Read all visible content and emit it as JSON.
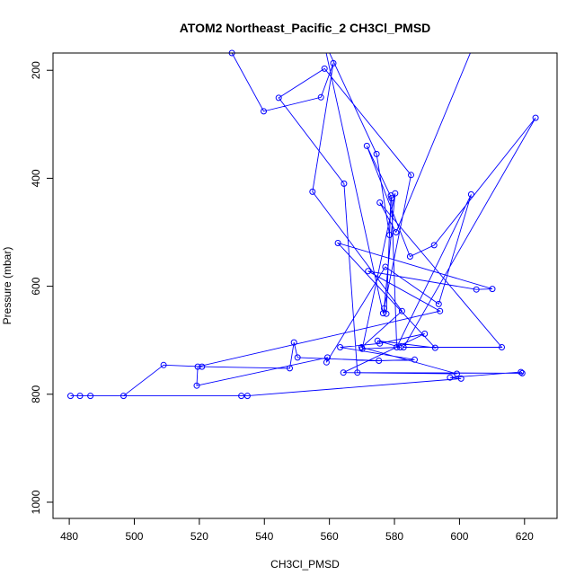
{
  "chart_data": {
    "type": "line",
    "title": "ATOM2 Northeast_Pacific_2 CH3Cl_PMSD",
    "xlabel": "CH3Cl_PMSD",
    "ylabel": "Pressure (mbar)",
    "xlim": [
      475,
      630
    ],
    "ylim": [
      1030,
      168
    ],
    "y_reversed": true,
    "x_ticks": [
      480,
      500,
      520,
      540,
      560,
      580,
      600,
      620
    ],
    "y_ticks": [
      200,
      400,
      600,
      800,
      1000
    ],
    "grid": false,
    "legend": "none",
    "series_color": "#0000ff",
    "series": [
      {
        "x": [
          530,
          539.8,
          557.4,
          561.2,
          554.8,
          582.3,
          569.9,
          599.2,
          564.3,
          589.3,
          575.5,
          563.3,
          586.2,
          575.2,
          550.2,
          549.1,
          547.8,
          520.8,
          509,
          496.7,
          486.5,
          483.3,
          480.4,
          532.9,
          534.8,
          600.5,
          597.1,
          618.9,
          619.3,
          568.6,
          564.5,
          544.4,
          558.5,
          585.1,
          576.5,
          558.1,
          574.5,
          578.5,
          578.9,
          577.5,
          576.8,
          580.2,
          570.1,
          581.8,
          574.8,
          592.5,
          562.6,
          610.1,
          605.2,
          571.9,
          594,
          519.5,
          519.2,
          559.4,
          559.1,
          577.2,
          593.6,
          603.6,
          580.7,
          579.1,
          571.5,
          584.8,
          592.2,
          623.4,
          582.8,
          613,
          575.5,
          580.5,
          608
        ],
        "y": [
          168,
          276,
          250,
          187,
          425,
          646,
          713,
          762,
          760,
          688,
          706,
          713,
          736,
          738,
          732,
          704,
          752,
          749,
          746,
          803,
          803,
          803,
          803,
          803,
          803,
          771,
          769,
          759,
          761,
          760,
          410,
          251,
          197,
          394,
          650,
          143,
          355,
          505,
          432,
          651,
          641,
          428,
          716,
          713,
          701,
          714,
          520,
          605,
          606,
          572,
          646,
          749,
          784,
          732,
          741,
          564,
          633,
          430,
          713,
          437,
          340,
          545,
          524,
          288,
          713,
          713,
          445,
          500,
          100
        ]
      }
    ]
  }
}
